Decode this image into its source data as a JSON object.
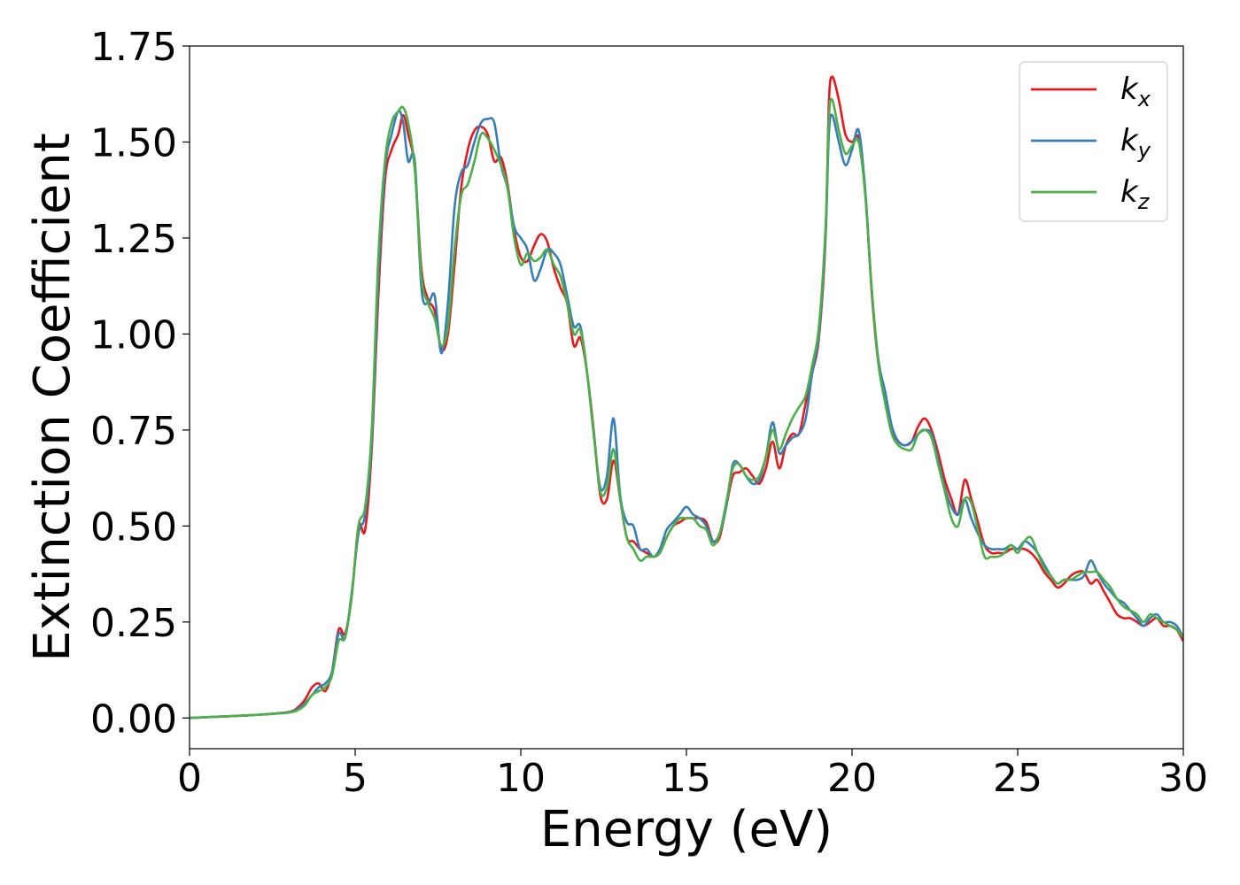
{
  "chart_data": {
    "type": "line",
    "title": "",
    "xlabel": "Energy (eV)",
    "ylabel": "Extinction Coefficient",
    "xlim": [
      0,
      30
    ],
    "ylim": [
      -0.08,
      1.75
    ],
    "xticks": [
      0,
      5,
      10,
      15,
      20,
      25,
      30
    ],
    "xtick_labels": [
      "0",
      "5",
      "10",
      "15",
      "20",
      "25",
      "30"
    ],
    "yticks": [
      0.0,
      0.25,
      0.5,
      0.75,
      1.0,
      1.25,
      1.5,
      1.75
    ],
    "ytick_labels": [
      "0.00",
      "0.25",
      "0.50",
      "0.75",
      "1.00",
      "1.25",
      "1.50",
      "1.75"
    ],
    "grid": false,
    "legend_position": "top-right",
    "series": [
      {
        "name": "k_x",
        "label_base": "k",
        "label_sub": "x",
        "color": "#e41a1c",
        "x": [
          0,
          1,
          2,
          3,
          3.3,
          3.5,
          3.7,
          3.9,
          4.1,
          4.3,
          4.5,
          4.7,
          4.9,
          5.1,
          5.3,
          5.5,
          5.7,
          5.9,
          6.1,
          6.3,
          6.45,
          6.6,
          6.8,
          7.0,
          7.2,
          7.4,
          7.6,
          7.8,
          8.0,
          8.2,
          8.4,
          8.6,
          8.8,
          9.0,
          9.2,
          9.4,
          9.6,
          9.8,
          10.0,
          10.2,
          10.4,
          10.6,
          10.8,
          11.0,
          11.2,
          11.4,
          11.6,
          11.8,
          12.0,
          12.2,
          12.4,
          12.6,
          12.8,
          13.0,
          13.2,
          13.4,
          13.6,
          13.8,
          14.0,
          14.2,
          14.4,
          14.6,
          14.8,
          15.0,
          15.2,
          15.4,
          15.6,
          15.8,
          16.0,
          16.2,
          16.4,
          16.6,
          16.8,
          17.0,
          17.2,
          17.4,
          17.6,
          17.8,
          18.0,
          18.2,
          18.4,
          18.6,
          18.8,
          19.0,
          19.2,
          19.3,
          19.4,
          19.6,
          19.8,
          20.0,
          20.2,
          20.4,
          20.6,
          20.8,
          21.0,
          21.2,
          21.4,
          21.6,
          21.8,
          22.0,
          22.2,
          22.4,
          22.6,
          22.8,
          23.0,
          23.2,
          23.4,
          23.6,
          23.8,
          24.0,
          24.2,
          24.4,
          24.6,
          24.8,
          25.0,
          25.2,
          25.4,
          25.6,
          25.8,
          26.0,
          26.2,
          26.4,
          26.6,
          26.8,
          27.0,
          27.2,
          27.4,
          27.6,
          27.8,
          28.0,
          28.2,
          28.4,
          28.6,
          28.8,
          29.0,
          29.2,
          29.4,
          29.6,
          29.8,
          30.0
        ],
        "y": [
          0.0,
          0.004,
          0.008,
          0.016,
          0.03,
          0.05,
          0.08,
          0.09,
          0.07,
          0.12,
          0.23,
          0.22,
          0.32,
          0.5,
          0.49,
          0.7,
          1.1,
          1.4,
          1.48,
          1.52,
          1.57,
          1.52,
          1.43,
          1.17,
          1.09,
          1.06,
          0.96,
          1.0,
          1.18,
          1.38,
          1.48,
          1.53,
          1.54,
          1.52,
          1.45,
          1.46,
          1.39,
          1.27,
          1.2,
          1.19,
          1.23,
          1.26,
          1.24,
          1.17,
          1.12,
          1.08,
          0.97,
          0.99,
          0.9,
          0.75,
          0.58,
          0.57,
          0.67,
          0.57,
          0.47,
          0.46,
          0.44,
          0.43,
          0.42,
          0.43,
          0.47,
          0.5,
          0.51,
          0.52,
          0.52,
          0.52,
          0.51,
          0.46,
          0.47,
          0.55,
          0.63,
          0.64,
          0.65,
          0.63,
          0.61,
          0.65,
          0.72,
          0.65,
          0.71,
          0.74,
          0.74,
          0.82,
          0.9,
          0.99,
          1.25,
          1.6,
          1.67,
          1.61,
          1.52,
          1.5,
          1.51,
          1.37,
          1.1,
          0.92,
          0.83,
          0.75,
          0.72,
          0.71,
          0.72,
          0.76,
          0.78,
          0.75,
          0.69,
          0.62,
          0.57,
          0.53,
          0.62,
          0.57,
          0.51,
          0.45,
          0.43,
          0.43,
          0.43,
          0.44,
          0.44,
          0.44,
          0.43,
          0.41,
          0.38,
          0.36,
          0.34,
          0.35,
          0.37,
          0.38,
          0.38,
          0.35,
          0.36,
          0.33,
          0.3,
          0.27,
          0.26,
          0.26,
          0.25,
          0.24,
          0.25,
          0.26,
          0.24,
          0.24,
          0.23,
          0.2
        ]
      },
      {
        "name": "k_y",
        "label_base": "k",
        "label_sub": "y",
        "color": "#377eb8",
        "x": [
          0,
          1,
          2,
          3,
          3.3,
          3.5,
          3.7,
          3.9,
          4.1,
          4.3,
          4.5,
          4.7,
          4.9,
          5.1,
          5.3,
          5.5,
          5.7,
          5.9,
          6.1,
          6.3,
          6.45,
          6.6,
          6.8,
          7.0,
          7.2,
          7.4,
          7.6,
          7.8,
          8.0,
          8.2,
          8.4,
          8.6,
          8.8,
          9.0,
          9.2,
          9.4,
          9.6,
          9.8,
          10.0,
          10.2,
          10.4,
          10.6,
          10.8,
          11.0,
          11.2,
          11.4,
          11.6,
          11.8,
          12.0,
          12.2,
          12.4,
          12.6,
          12.8,
          13.0,
          13.2,
          13.4,
          13.6,
          13.8,
          14.0,
          14.2,
          14.4,
          14.6,
          14.8,
          15.0,
          15.2,
          15.4,
          15.6,
          15.8,
          16.0,
          16.2,
          16.4,
          16.6,
          16.8,
          17.0,
          17.2,
          17.4,
          17.6,
          17.8,
          18.0,
          18.2,
          18.4,
          18.6,
          18.8,
          19.0,
          19.2,
          19.3,
          19.4,
          19.6,
          19.8,
          20.0,
          20.2,
          20.4,
          20.6,
          20.8,
          21.0,
          21.2,
          21.4,
          21.6,
          21.8,
          22.0,
          22.2,
          22.4,
          22.6,
          22.8,
          23.0,
          23.2,
          23.4,
          23.6,
          23.8,
          24.0,
          24.2,
          24.4,
          24.6,
          24.8,
          25.0,
          25.2,
          25.4,
          25.6,
          25.8,
          26.0,
          26.2,
          26.4,
          26.6,
          26.8,
          27.0,
          27.2,
          27.4,
          27.6,
          27.8,
          28.0,
          28.2,
          28.4,
          28.6,
          28.8,
          29.0,
          29.2,
          29.4,
          29.6,
          29.8,
          30.0
        ],
        "y": [
          0.0,
          0.004,
          0.008,
          0.015,
          0.025,
          0.04,
          0.06,
          0.08,
          0.09,
          0.12,
          0.22,
          0.21,
          0.33,
          0.48,
          0.53,
          0.72,
          1.15,
          1.43,
          1.52,
          1.58,
          1.55,
          1.45,
          1.45,
          1.12,
          1.08,
          1.1,
          0.95,
          1.08,
          1.33,
          1.42,
          1.44,
          1.5,
          1.55,
          1.56,
          1.55,
          1.44,
          1.38,
          1.28,
          1.25,
          1.22,
          1.14,
          1.17,
          1.22,
          1.21,
          1.18,
          1.1,
          1.02,
          1.02,
          0.9,
          0.74,
          0.6,
          0.63,
          0.78,
          0.58,
          0.51,
          0.5,
          0.44,
          0.44,
          0.42,
          0.44,
          0.49,
          0.51,
          0.53,
          0.55,
          0.53,
          0.52,
          0.5,
          0.46,
          0.48,
          0.55,
          0.66,
          0.66,
          0.63,
          0.61,
          0.62,
          0.68,
          0.77,
          0.69,
          0.71,
          0.73,
          0.74,
          0.78,
          0.9,
          1.0,
          1.26,
          1.52,
          1.57,
          1.5,
          1.44,
          1.48,
          1.53,
          1.37,
          1.11,
          0.93,
          0.85,
          0.76,
          0.72,
          0.71,
          0.72,
          0.74,
          0.75,
          0.74,
          0.67,
          0.6,
          0.55,
          0.53,
          0.57,
          0.52,
          0.48,
          0.45,
          0.44,
          0.44,
          0.44,
          0.45,
          0.44,
          0.46,
          0.45,
          0.43,
          0.4,
          0.37,
          0.35,
          0.36,
          0.36,
          0.36,
          0.37,
          0.41,
          0.38,
          0.35,
          0.33,
          0.31,
          0.3,
          0.28,
          0.26,
          0.24,
          0.26,
          0.27,
          0.25,
          0.25,
          0.24,
          0.21
        ]
      },
      {
        "name": "k_z",
        "label_base": "k",
        "label_sub": "z",
        "color": "#4daf4a",
        "x": [
          0,
          1,
          2,
          3,
          3.3,
          3.5,
          3.7,
          3.9,
          4.1,
          4.3,
          4.5,
          4.7,
          4.9,
          5.1,
          5.3,
          5.5,
          5.7,
          5.9,
          6.1,
          6.3,
          6.45,
          6.6,
          6.8,
          7.0,
          7.2,
          7.4,
          7.6,
          7.8,
          8.0,
          8.2,
          8.4,
          8.6,
          8.8,
          9.0,
          9.2,
          9.4,
          9.6,
          9.8,
          10.0,
          10.2,
          10.4,
          10.6,
          10.8,
          11.0,
          11.2,
          11.4,
          11.6,
          11.8,
          12.0,
          12.2,
          12.4,
          12.6,
          12.8,
          13.0,
          13.2,
          13.4,
          13.6,
          13.8,
          14.0,
          14.2,
          14.4,
          14.6,
          14.8,
          15.0,
          15.2,
          15.4,
          15.6,
          15.8,
          16.0,
          16.2,
          16.4,
          16.6,
          16.8,
          17.0,
          17.2,
          17.4,
          17.6,
          17.8,
          18.0,
          18.2,
          18.4,
          18.6,
          18.8,
          19.0,
          19.2,
          19.3,
          19.4,
          19.6,
          19.8,
          20.0,
          20.2,
          20.4,
          20.6,
          20.8,
          21.0,
          21.2,
          21.4,
          21.6,
          21.8,
          22.0,
          22.2,
          22.4,
          22.6,
          22.8,
          23.0,
          23.2,
          23.4,
          23.6,
          23.8,
          24.0,
          24.2,
          24.4,
          24.6,
          24.8,
          25.0,
          25.2,
          25.4,
          25.6,
          25.8,
          26.0,
          26.2,
          26.4,
          26.6,
          26.8,
          27.0,
          27.2,
          27.4,
          27.6,
          27.8,
          28.0,
          28.2,
          28.4,
          28.6,
          28.8,
          29.0,
          29.2,
          29.4,
          29.6,
          29.8,
          30.0
        ],
        "y": [
          0.0,
          0.004,
          0.008,
          0.014,
          0.022,
          0.035,
          0.06,
          0.07,
          0.08,
          0.11,
          0.2,
          0.21,
          0.32,
          0.5,
          0.55,
          0.75,
          1.2,
          1.45,
          1.55,
          1.58,
          1.59,
          1.55,
          1.43,
          1.15,
          1.08,
          1.04,
          0.97,
          1.02,
          1.22,
          1.36,
          1.39,
          1.45,
          1.52,
          1.51,
          1.48,
          1.44,
          1.38,
          1.25,
          1.18,
          1.21,
          1.19,
          1.2,
          1.22,
          1.18,
          1.15,
          1.08,
          1.0,
          1.01,
          0.9,
          0.74,
          0.59,
          0.6,
          0.7,
          0.57,
          0.47,
          0.44,
          0.41,
          0.42,
          0.42,
          0.43,
          0.47,
          0.5,
          0.52,
          0.52,
          0.52,
          0.5,
          0.49,
          0.45,
          0.48,
          0.56,
          0.65,
          0.66,
          0.63,
          0.62,
          0.63,
          0.68,
          0.75,
          0.7,
          0.74,
          0.78,
          0.81,
          0.84,
          0.92,
          1.02,
          1.28,
          1.56,
          1.61,
          1.53,
          1.47,
          1.49,
          1.5,
          1.36,
          1.11,
          0.92,
          0.82,
          0.74,
          0.71,
          0.7,
          0.7,
          0.74,
          0.75,
          0.73,
          0.66,
          0.59,
          0.52,
          0.5,
          0.57,
          0.56,
          0.49,
          0.42,
          0.42,
          0.42,
          0.43,
          0.45,
          0.43,
          0.46,
          0.47,
          0.43,
          0.39,
          0.37,
          0.35,
          0.36,
          0.36,
          0.37,
          0.38,
          0.38,
          0.38,
          0.36,
          0.34,
          0.31,
          0.29,
          0.28,
          0.27,
          0.25,
          0.27,
          0.26,
          0.25,
          0.24,
          0.23,
          0.21
        ]
      }
    ]
  }
}
